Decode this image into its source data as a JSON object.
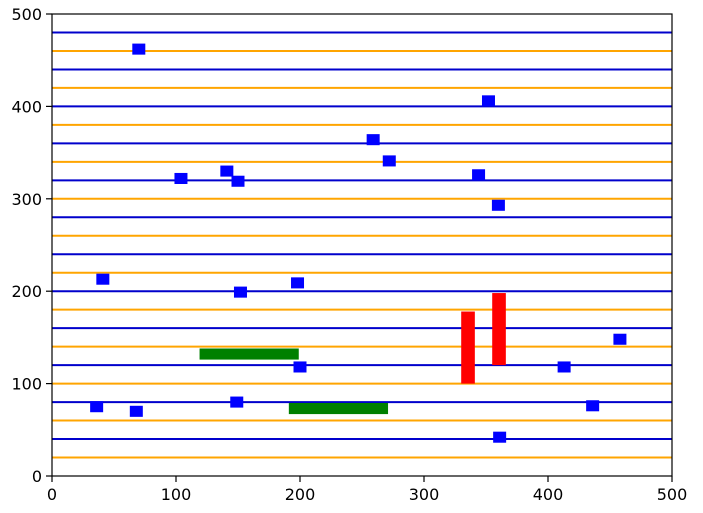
{
  "chart_data": {
    "type": "scatter",
    "title": "",
    "xlabel": "",
    "ylabel": "",
    "xlim": [
      0,
      500
    ],
    "ylim": [
      0,
      500
    ],
    "x_ticks": [
      0,
      100,
      200,
      300,
      400,
      500
    ],
    "y_ticks": [
      0,
      100,
      200,
      300,
      400,
      500
    ],
    "x_tick_labels": [
      "0",
      "100",
      "200",
      "300",
      "400",
      "500"
    ],
    "y_tick_labels": [
      "0",
      "100",
      "200",
      "300",
      "400",
      "500"
    ],
    "grid": false,
    "legend": "none",
    "horizontal_lines": {
      "orange": {
        "color": "#ffa500",
        "y": [
          20,
          60,
          100,
          140,
          180,
          220,
          260,
          300,
          340,
          380,
          420,
          460
        ]
      },
      "blue": {
        "color": "#0000cc",
        "y": [
          40,
          80,
          120,
          160,
          200,
          240,
          280,
          320,
          360,
          400,
          440,
          480
        ]
      }
    },
    "markers": {
      "color": "#0000ff",
      "shape": "square",
      "points": [
        [
          70,
          462
        ],
        [
          352,
          406
        ],
        [
          259,
          364
        ],
        [
          272,
          341
        ],
        [
          141,
          330
        ],
        [
          104,
          322
        ],
        [
          150,
          319
        ],
        [
          344,
          326
        ],
        [
          360,
          293
        ],
        [
          41,
          213
        ],
        [
          198,
          209
        ],
        [
          152,
          199
        ],
        [
          458,
          148
        ],
        [
          200,
          118
        ],
        [
          413,
          118
        ],
        [
          36,
          75
        ],
        [
          68,
          70
        ],
        [
          149,
          80
        ],
        [
          436,
          76
        ],
        [
          361,
          42
        ]
      ]
    },
    "green_bars": {
      "color": "#008000",
      "segments": [
        {
          "x0": 119,
          "x1": 199,
          "y0": 126,
          "y1": 138
        },
        {
          "x0": 191,
          "x1": 271,
          "y0": 67,
          "y1": 79
        }
      ]
    },
    "red_bars": {
      "color": "#ff0000",
      "segments": [
        {
          "x0": 330,
          "x1": 341,
          "y0": 100,
          "y1": 178
        },
        {
          "x0": 355,
          "x1": 366,
          "y0": 120,
          "y1": 198
        }
      ]
    }
  }
}
